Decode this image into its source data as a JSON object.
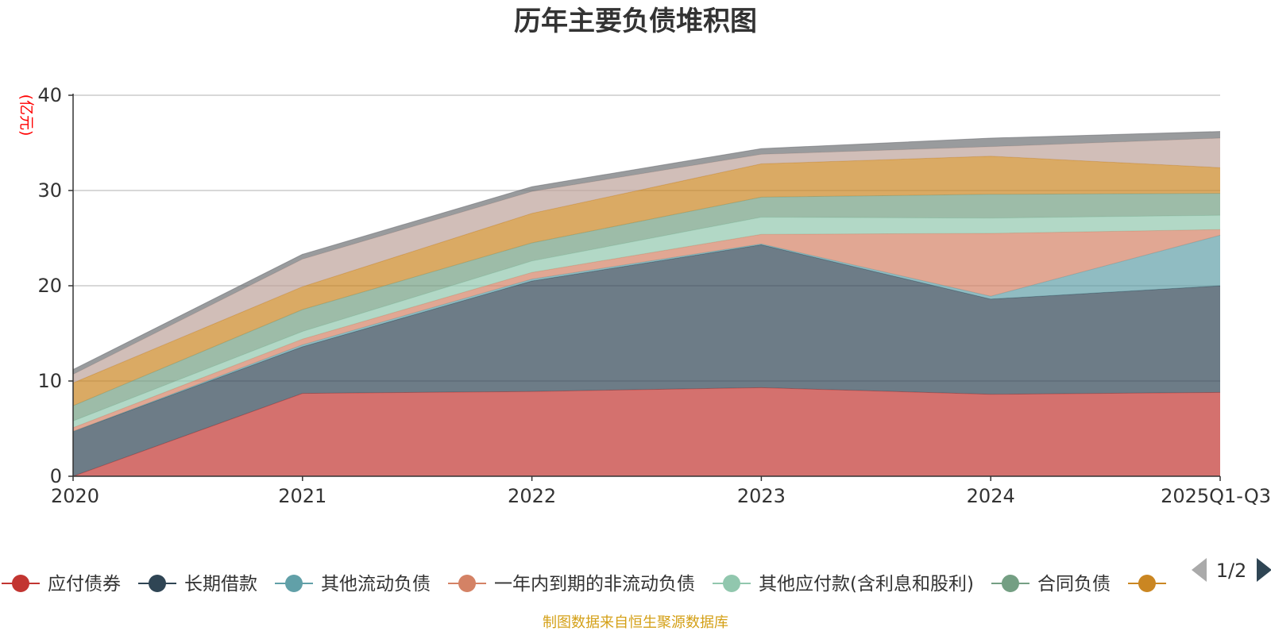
{
  "chart_data": {
    "type": "area",
    "stacked": true,
    "title": "历年主要负债堆积图",
    "unit_label": "(亿元)",
    "source_text": "制图数据来自恒生聚源数据库",
    "categories": [
      "2020",
      "2021",
      "2022",
      "2023",
      "2024",
      "2025Q1-Q3"
    ],
    "ylim": [
      0,
      40
    ],
    "yticks": [
      0,
      10,
      20,
      30,
      40
    ],
    "grid": true,
    "legend_position": "bottom",
    "legend_page": "1/2",
    "series": [
      {
        "name": "应付债券",
        "color": "#c23531",
        "values": [
          0,
          8.7,
          8.9,
          9.3,
          8.6,
          8.8
        ]
      },
      {
        "name": "长期借款",
        "color": "#2f4554",
        "values": [
          4.7,
          4.9,
          11.6,
          15.0,
          10.0,
          11.2
        ]
      },
      {
        "name": "其他流动负债",
        "color": "#61a0a8",
        "values": [
          0,
          0.2,
          0.2,
          0.1,
          0.3,
          5.3
        ]
      },
      {
        "name": "一年内到期的非流动负债",
        "color": "#d48265",
        "values": [
          0.4,
          0.6,
          0.7,
          1.0,
          6.6,
          0.6
        ]
      },
      {
        "name": "其他应付款(含利息和股利)",
        "color": "#91c7ae",
        "values": [
          0.7,
          0.8,
          1.2,
          1.8,
          1.6,
          1.5
        ]
      },
      {
        "name": "合同负债",
        "color": "#749f83",
        "values": [
          1.6,
          2.3,
          1.9,
          2.1,
          2.5,
          2.3
        ]
      },
      {
        "name": "",
        "color": "#ca8622",
        "values": [
          2.4,
          2.4,
          3.1,
          3.5,
          4.0,
          2.7
        ]
      },
      {
        "name": "",
        "color": "#bda29a",
        "values": [
          0.9,
          2.9,
          2.3,
          1.0,
          1.0,
          3.1
        ]
      },
      {
        "name": "",
        "color": "#6e7074",
        "values": [
          0.5,
          0.5,
          0.5,
          0.6,
          0.9,
          0.7
        ]
      }
    ]
  }
}
